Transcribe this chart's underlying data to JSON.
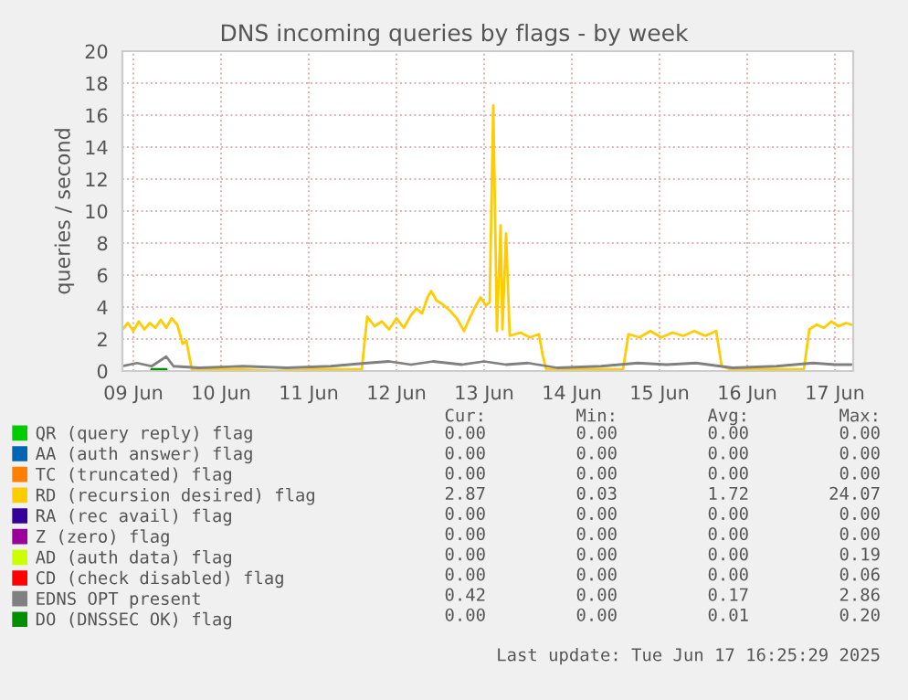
{
  "chart_data": {
    "type": "line",
    "title": "DNS incoming queries by flags - by week",
    "ylabel": "queries / second",
    "xlim": [
      "2025-06-09T09:00",
      "2025-06-17T17:00"
    ],
    "xticks": [
      {
        "value": "2025-06-09T12:00",
        "label": "09 Jun"
      },
      {
        "value": "2025-06-10T12:00",
        "label": "10 Jun"
      },
      {
        "value": "2025-06-11T12:00",
        "label": "11 Jun"
      },
      {
        "value": "2025-06-12T12:00",
        "label": "12 Jun"
      },
      {
        "value": "2025-06-13T12:00",
        "label": "13 Jun"
      },
      {
        "value": "2025-06-14T12:00",
        "label": "14 Jun"
      },
      {
        "value": "2025-06-15T12:00",
        "label": "15 Jun"
      },
      {
        "value": "2025-06-16T12:00",
        "label": "16 Jun"
      },
      {
        "value": "2025-06-17T12:00",
        "label": "17 Jun"
      }
    ],
    "ylim": [
      0,
      20
    ],
    "yticks": [
      0,
      2,
      4,
      6,
      8,
      10,
      12,
      14,
      16,
      18,
      20
    ],
    "grid": true,
    "legend": "bottom",
    "marker": "none",
    "line_style": "solid",
    "series": [
      {
        "name": "QR (query reply) flag",
        "color": "#00cc00"
      },
      {
        "name": "AA (auth answer) flag",
        "color": "#0066b3"
      },
      {
        "name": "TC (truncated) flag",
        "color": "#ff8000"
      },
      {
        "name": "RD (recursion desired) flag",
        "color": "#ffcc00",
        "x": [
          "2025-06-09T09:00",
          "2025-06-09T10:30",
          "2025-06-09T12:00",
          "2025-06-09T13:30",
          "2025-06-09T15:00",
          "2025-06-09T16:30",
          "2025-06-09T18:00",
          "2025-06-09T19:30",
          "2025-06-09T21:00",
          "2025-06-09T22:30",
          "2025-06-10T00:00",
          "2025-06-10T01:30",
          "2025-06-10T02:30",
          "2025-06-10T04:00",
          "2025-06-10T16:30",
          "2025-06-11T02:30",
          "2025-06-11T15:00",
          "2025-06-12T02:30",
          "2025-06-12T04:00",
          "2025-06-12T06:00",
          "2025-06-12T08:00",
          "2025-06-12T10:00",
          "2025-06-12T12:00",
          "2025-06-12T14:00",
          "2025-06-12T16:00",
          "2025-06-12T17:30",
          "2025-06-12T19:00",
          "2025-06-12T20:30",
          "2025-06-12T21:30",
          "2025-06-12T23:00",
          "2025-06-13T00:30",
          "2025-06-13T02:30",
          "2025-06-13T04:30",
          "2025-06-13T06:30",
          "2025-06-13T08:00",
          "2025-06-13T09:30",
          "2025-06-13T11:00",
          "2025-06-13T12:30",
          "2025-06-13T13:30",
          "2025-06-13T14:30",
          "2025-06-13T15:30",
          "2025-06-13T16:30",
          "2025-06-13T17:00",
          "2025-06-13T18:00",
          "2025-06-13T19:00",
          "2025-06-13T22:00",
          "2025-06-14T00:30",
          "2025-06-14T03:00",
          "2025-06-14T04:00",
          "2025-06-14T05:00",
          "2025-06-14T15:30",
          "2025-06-15T02:00",
          "2025-06-15T03:30",
          "2025-06-15T06:30",
          "2025-06-15T09:30",
          "2025-06-15T12:30",
          "2025-06-15T15:30",
          "2025-06-15T18:30",
          "2025-06-15T21:30",
          "2025-06-16T00:30",
          "2025-06-16T03:30",
          "2025-06-16T05:00",
          "2025-06-16T07:30",
          "2025-06-16T17:30",
          "2025-06-17T03:30",
          "2025-06-17T05:00",
          "2025-06-17T07:00",
          "2025-06-17T09:00",
          "2025-06-17T11:00",
          "2025-06-17T13:00",
          "2025-06-17T15:00",
          "2025-06-17T16:30"
        ],
        "values": [
          2.6,
          3.0,
          2.5,
          3.1,
          2.6,
          3.0,
          2.7,
          3.2,
          2.7,
          3.3,
          2.9,
          1.7,
          1.9,
          0.1,
          0.1,
          0.0,
          0.1,
          0.1,
          3.4,
          2.8,
          3.1,
          2.6,
          3.3,
          2.7,
          3.5,
          3.9,
          3.6,
          4.6,
          5.0,
          4.4,
          4.2,
          3.8,
          3.3,
          2.5,
          3.3,
          4.0,
          4.6,
          4.1,
          4.3,
          16.6,
          2.5,
          9.1,
          2.6,
          8.6,
          2.2,
          2.4,
          2.1,
          2.3,
          1.0,
          0.1,
          0.1,
          0.1,
          2.3,
          2.1,
          2.5,
          2.1,
          2.4,
          2.2,
          2.5,
          2.2,
          2.5,
          0.3,
          0.1,
          0.1,
          0.1,
          2.6,
          2.9,
          2.7,
          3.1,
          2.8,
          3.0,
          2.9
        ]
      },
      {
        "name": "RA (rec avail) flag",
        "color": "#330099"
      },
      {
        "name": "Z (zero) flag",
        "color": "#990099"
      },
      {
        "name": "AD (auth data) flag",
        "color": "#ccff00"
      },
      {
        "name": "CD (check disabled) flag",
        "color": "#ff0000"
      },
      {
        "name": "EDNS OPT present",
        "color": "#808080",
        "x": [
          "2025-06-09T09:00",
          "2025-06-09T13:00",
          "2025-06-09T17:00",
          "2025-06-09T21:00",
          "2025-06-09T23:00",
          "2025-06-10T06:00",
          "2025-06-10T18:00",
          "2025-06-11T06:00",
          "2025-06-11T18:00",
          "2025-06-12T04:00",
          "2025-06-12T10:00",
          "2025-06-12T16:00",
          "2025-06-12T22:00",
          "2025-06-13T06:00",
          "2025-06-13T12:00",
          "2025-06-13T18:00",
          "2025-06-14T00:00",
          "2025-06-14T08:00",
          "2025-06-14T20:00",
          "2025-06-15T06:00",
          "2025-06-15T14:00",
          "2025-06-15T22:00",
          "2025-06-16T08:00",
          "2025-06-16T20:00",
          "2025-06-17T06:00",
          "2025-06-17T12:00",
          "2025-06-17T16:30"
        ],
        "values": [
          0.3,
          0.5,
          0.3,
          0.9,
          0.3,
          0.2,
          0.3,
          0.2,
          0.3,
          0.5,
          0.6,
          0.4,
          0.6,
          0.4,
          0.6,
          0.4,
          0.5,
          0.2,
          0.3,
          0.5,
          0.4,
          0.5,
          0.2,
          0.3,
          0.5,
          0.4,
          0.4
        ]
      },
      {
        "name": "DO (DNSSEC OK) flag",
        "color": "#008f00",
        "x": [
          "2025-06-09T17:00",
          "2025-06-09T19:00",
          "2025-06-09T21:00"
        ],
        "values": [
          0.1,
          0.1,
          0.1
        ]
      }
    ],
    "annotations": [
      "Cur:",
      "Min:",
      "Avg:",
      "Max:",
      "0.00",
      "0.00",
      "0.00",
      "0.00",
      "0.00",
      "0.00",
      "0.00",
      "0.00",
      "0.00",
      "0.00",
      "0.00",
      "0.00",
      "2.87",
      "0.03",
      "1.72",
      "24.07",
      "0.00",
      "0.00",
      "0.00",
      "0.00",
      "0.00",
      "0.00",
      "0.00",
      "0.00",
      "0.00",
      "0.00",
      "0.00",
      "0.19",
      "0.00",
      "0.00",
      "0.00",
      "0.06",
      "0.42",
      "0.00",
      "0.17",
      "2.86",
      "0.00",
      "0.00",
      "0.01",
      "0.20",
      "Last update: Tue Jun 17 16:25:29 2025"
    ]
  }
}
